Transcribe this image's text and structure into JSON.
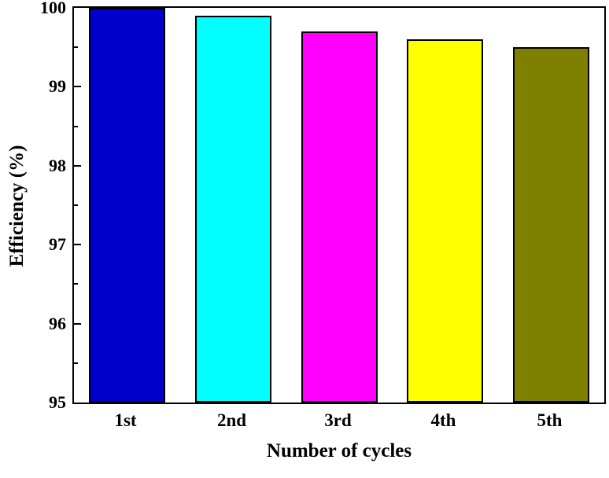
{
  "chart_data": {
    "type": "bar",
    "title": "",
    "xlabel": "Number of cycles",
    "ylabel": "Efficiency (%)",
    "categories": [
      "1st",
      "2nd",
      "3rd",
      "4th",
      "5th"
    ],
    "values": [
      100.0,
      99.9,
      99.7,
      99.6,
      99.5
    ],
    "colors": [
      "#0000cd",
      "#00ffff",
      "#ff00ff",
      "#ffff00",
      "#808000"
    ],
    "ylim": [
      95,
      100
    ],
    "yticks": [
      95,
      96,
      97,
      98,
      99,
      100
    ],
    "minor_tick_step": 0.5,
    "bar_border_color": "#000000",
    "axis_color": "#000000",
    "background_color": "#ffffff",
    "grid": false,
    "legend": "none"
  }
}
